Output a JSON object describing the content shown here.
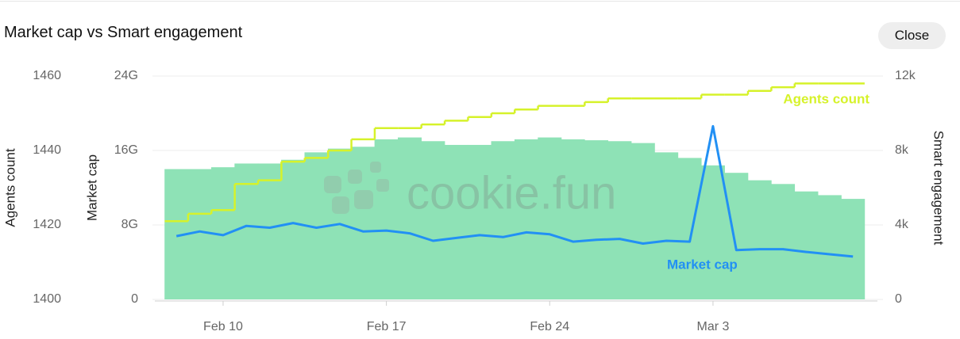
{
  "title": "Market cap vs Smart engagement",
  "close_button": "Close",
  "chart_data": {
    "type": "combo",
    "watermark": "cookie.fun",
    "categories": [
      null,
      null,
      "Feb 10",
      null,
      null,
      null,
      null,
      null,
      null,
      "Feb 17",
      null,
      null,
      null,
      null,
      null,
      null,
      "Feb 24",
      null,
      null,
      null,
      null,
      null,
      null,
      "Mar 3",
      null,
      null,
      null,
      null,
      null,
      null
    ],
    "ylim": [
      0,
      24000000000
    ],
    "yticks": [
      0,
      {
        "value": 8000000000,
        "label": "8G"
      },
      {
        "value": 16000000000,
        "label": "16G"
      },
      {
        "value": 24000000000,
        "label": "24G"
      }
    ],
    "y2lim": [
      0,
      12000
    ],
    "y2ticks": [
      0,
      {
        "value": 4000,
        "label": "4k"
      },
      {
        "value": 8000,
        "label": "8k"
      },
      {
        "value": 12000,
        "label": "12k"
      }
    ],
    "y3lim": [
      1400,
      1460
    ],
    "y3ticks": [
      1400,
      1420,
      1440,
      1460
    ],
    "grid": true,
    "series": [
      {
        "name": "Smart engagement",
        "type": "bar",
        "axis": "y2",
        "color": "#8ee2b6",
        "values": [
          7000,
          7000,
          7100,
          7300,
          7300,
          7500,
          7900,
          8100,
          8200,
          8600,
          8700,
          8500,
          8300,
          8300,
          8500,
          8600,
          8700,
          8600,
          8550,
          8500,
          8400,
          7900,
          7600,
          7200,
          6800,
          6400,
          6200,
          5800,
          5600,
          5400
        ]
      },
      {
        "name": "Market cap",
        "type": "line",
        "axis": "y",
        "color": "#2290f4",
        "values": [
          6800000000,
          7300000000,
          6900000000,
          7900000000,
          7700000000,
          8200000000,
          7700000000,
          8100000000,
          7300000000,
          7400000000,
          7100000000,
          6300000000,
          6600000000,
          6900000000,
          6700000000,
          7200000000,
          7000000000,
          6200000000,
          6400000000,
          6500000000,
          6000000000,
          6300000000,
          6200000000,
          18600000000,
          5300000000,
          5400000000,
          5400000000,
          5100000000,
          4850000000,
          4600000000
        ]
      },
      {
        "name": "Agents count",
        "type": "step",
        "axis": "y3",
        "color": "#d6f22a",
        "values": [
          1421,
          1423,
          1424,
          1431,
          1432,
          1437,
          1438,
          1440,
          1443,
          1446,
          1446,
          1447,
          1448,
          1449,
          1450,
          1451,
          1452,
          1452,
          1453,
          1454,
          1454,
          1454,
          1454,
          1455,
          1455,
          1456,
          1457,
          1458,
          1458,
          1458
        ]
      }
    ]
  }
}
